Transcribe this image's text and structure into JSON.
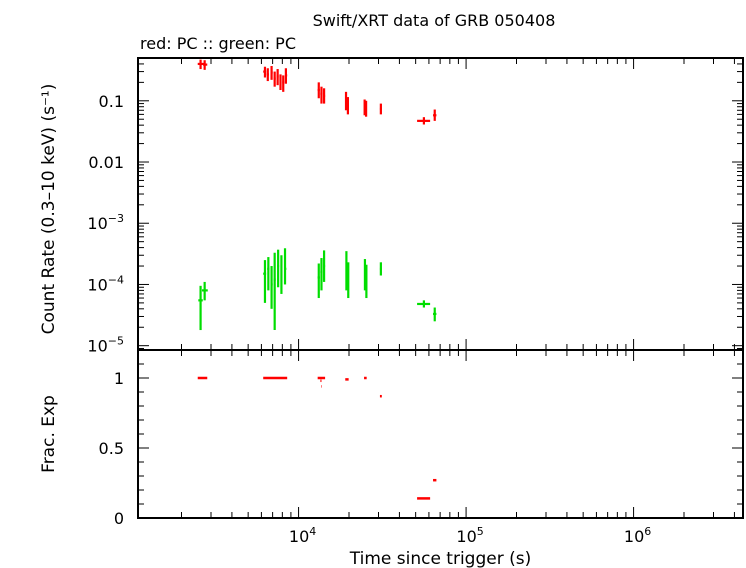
{
  "title": "Swift/XRT data of GRB 050408",
  "subtitle": "red: PC  :: green: PC",
  "colors": {
    "pc_red": "#ff0000",
    "pc_green": "#00dd00",
    "axis": "#000000"
  },
  "chart_data": [
    {
      "type": "scatter",
      "ylabel": "Count Rate (0.3–10 keV) (s⁻¹)",
      "xscale": "log",
      "yscale": "log",
      "xlim": [
        1100,
        4500000
      ],
      "ylim": [
        8.5e-06,
        0.5
      ],
      "yticks": [
        {
          "value": 0.1,
          "label": "0.1"
        },
        {
          "value": 0.01,
          "label": "0.01"
        },
        {
          "value": 0.001,
          "label": "10",
          "exp": "−3"
        },
        {
          "value": 0.0001,
          "label": "10",
          "exp": "−4"
        },
        {
          "value": 1e-05,
          "label": "10",
          "exp": "−5"
        }
      ],
      "series": [
        {
          "color": "#ff0000",
          "points": [
            {
              "x": 2600,
              "xerr": [
                2500,
                2720
              ],
              "y": 0.4,
              "ylo": 0.33,
              "yhi": 0.47
            },
            {
              "x": 2750,
              "xerr": [
                2690,
                2850
              ],
              "y": 0.39,
              "ylo": 0.32,
              "yhi": 0.46
            },
            {
              "x": 6300,
              "xerr": [
                6150,
                6400
              ],
              "y": 0.3,
              "ylo": 0.24,
              "yhi": 0.36
            },
            {
              "x": 6550,
              "xerr": [
                6450,
                6650
              ],
              "y": 0.27,
              "ylo": 0.21,
              "yhi": 0.34
            },
            {
              "x": 6900,
              "xerr": [
                6800,
                7000
              ],
              "y": 0.29,
              "ylo": 0.22,
              "yhi": 0.37
            },
            {
              "x": 7200,
              "xerr": [
                7100,
                7300
              ],
              "y": 0.23,
              "ylo": 0.17,
              "yhi": 0.3
            },
            {
              "x": 7500,
              "xerr": [
                7400,
                7600
              ],
              "y": 0.25,
              "ylo": 0.18,
              "yhi": 0.33
            },
            {
              "x": 7800,
              "xerr": [
                7700,
                7900
              ],
              "y": 0.21,
              "ylo": 0.15,
              "yhi": 0.27
            },
            {
              "x": 8100,
              "xerr": [
                8000,
                8200
              ],
              "y": 0.2,
              "ylo": 0.14,
              "yhi": 0.26
            },
            {
              "x": 8400,
              "xerr": [
                8300,
                8550
              ],
              "y": 0.26,
              "ylo": 0.19,
              "yhi": 0.34
            },
            {
              "x": 13200,
              "xerr": [
                13000,
                13400
              ],
              "y": 0.15,
              "ylo": 0.11,
              "yhi": 0.2
            },
            {
              "x": 13700,
              "xerr": [
                13500,
                13900
              ],
              "y": 0.13,
              "ylo": 0.09,
              "yhi": 0.17
            },
            {
              "x": 14200,
              "xerr": [
                14000,
                14400
              ],
              "y": 0.12,
              "ylo": 0.09,
              "yhi": 0.16
            },
            {
              "x": 19200,
              "xerr": [
                19000,
                19400
              ],
              "y": 0.1,
              "ylo": 0.07,
              "yhi": 0.14
            },
            {
              "x": 19700,
              "xerr": [
                19500,
                19900
              ],
              "y": 0.085,
              "ylo": 0.06,
              "yhi": 0.115
            },
            {
              "x": 24800,
              "xerr": [
                24600,
                25000
              ],
              "y": 0.08,
              "ylo": 0.058,
              "yhi": 0.105
            },
            {
              "x": 25300,
              "xerr": [
                25100,
                25500
              ],
              "y": 0.075,
              "ylo": 0.055,
              "yhi": 0.1
            },
            {
              "x": 31000,
              "xerr": [
                30600,
                31400
              ],
              "y": 0.074,
              "ylo": 0.06,
              "yhi": 0.09
            },
            {
              "x": 56000,
              "xerr": [
                51000,
                61000
              ],
              "y": 0.047,
              "ylo": 0.041,
              "yhi": 0.054
            },
            {
              "x": 65000,
              "xerr": [
                63500,
                66500
              ],
              "y": 0.058,
              "ylo": 0.047,
              "yhi": 0.072
            }
          ]
        },
        {
          "color": "#00dd00",
          "points": [
            {
              "x": 2600,
              "xerr": [
                2520,
                2680
              ],
              "y": 5.5e-05,
              "ylo": 1.8e-05,
              "yhi": 9.5e-05
            },
            {
              "x": 2750,
              "xerr": [
                2650,
                2870
              ],
              "y": 8e-05,
              "ylo": 5.5e-05,
              "yhi": 0.00011
            },
            {
              "x": 6300,
              "xerr": [
                6150,
                6400
              ],
              "y": 0.00015,
              "ylo": 5e-05,
              "yhi": 0.00025
            },
            {
              "x": 6600,
              "xerr": [
                6500,
                6700
              ],
              "y": 0.00018,
              "ylo": 8e-05,
              "yhi": 0.00028
            },
            {
              "x": 6900,
              "xerr": [
                6800,
                7000
              ],
              "y": 0.0001,
              "ylo": 4e-05,
              "yhi": 0.0002
            },
            {
              "x": 7200,
              "xerr": [
                7100,
                7300
              ],
              "y": 0.00012,
              "ylo": 1.8e-05,
              "yhi": 0.00033
            },
            {
              "x": 7550,
              "xerr": [
                7450,
                7650
              ],
              "y": 0.0002,
              "ylo": 9e-05,
              "yhi": 0.00037
            },
            {
              "x": 7900,
              "xerr": [
                7800,
                8000
              ],
              "y": 0.00016,
              "ylo": 7e-05,
              "yhi": 0.0003
            },
            {
              "x": 8300,
              "xerr": [
                8200,
                8450
              ],
              "y": 0.00018,
              "ylo": 0.0001,
              "yhi": 0.00039
            },
            {
              "x": 13200,
              "xerr": [
                13000,
                13400
              ],
              "y": 0.00013,
              "ylo": 6e-05,
              "yhi": 0.00022
            },
            {
              "x": 13700,
              "xerr": [
                13500,
                13900
              ],
              "y": 0.00016,
              "ylo": 8e-05,
              "yhi": 0.00027
            },
            {
              "x": 14200,
              "xerr": [
                14000,
                14400
              ],
              "y": 0.0002,
              "ylo": 0.00011,
              "yhi": 0.00036
            },
            {
              "x": 19300,
              "xerr": [
                19100,
                19500
              ],
              "y": 0.00018,
              "ylo": 8e-05,
              "yhi": 0.00035
            },
            {
              "x": 19800,
              "xerr": [
                19600,
                20000
              ],
              "y": 0.00013,
              "ylo": 6e-05,
              "yhi": 0.00023
            },
            {
              "x": 24900,
              "xerr": [
                24700,
                25100
              ],
              "y": 0.00015,
              "ylo": 8e-05,
              "yhi": 0.00026
            },
            {
              "x": 25400,
              "xerr": [
                25200,
                25600
              ],
              "y": 0.00012,
              "ylo": 6e-05,
              "yhi": 0.00021
            },
            {
              "x": 31000,
              "xerr": [
                30600,
                31400
              ],
              "y": 0.00018,
              "ylo": 0.00014,
              "yhi": 0.00023
            },
            {
              "x": 56000,
              "xerr": [
                51000,
                61000
              ],
              "y": 4.8e-05,
              "ylo": 4.2e-05,
              "yhi": 5.5e-05
            },
            {
              "x": 65000,
              "xerr": [
                63500,
                66500
              ],
              "y": 3.3e-05,
              "ylo": 2.5e-05,
              "yhi": 4.2e-05
            }
          ]
        }
      ]
    },
    {
      "type": "scatter",
      "xlabel": "Time since trigger (s)",
      "ylabel": "Frac. Exp",
      "xscale": "log",
      "xlim": [
        1100,
        4500000
      ],
      "ylim": [
        0,
        1.2
      ],
      "yticks": [
        {
          "value": 1,
          "label": "1"
        },
        {
          "value": 0.5,
          "label": "0.5"
        },
        {
          "value": 0,
          "label": "0"
        }
      ],
      "xticks": [
        {
          "value": 10000,
          "label": "10",
          "exp": "4"
        },
        {
          "value": 100000,
          "label": "10",
          "exp": "5"
        },
        {
          "value": 1000000,
          "label": "10",
          "exp": "6"
        }
      ],
      "series": [
        {
          "color": "#ff0000",
          "points": [
            {
              "x1": 2500,
              "x2": 2850,
              "y": 1.0
            },
            {
              "x1": 6150,
              "x2": 8550,
              "y": 1.0
            },
            {
              "x1": 13000,
              "x2": 14400,
              "y": 1.0
            },
            {
              "x1": 13500,
              "x2": 13700,
              "y": 0.98
            },
            {
              "x1": 13700,
              "x2": 13800,
              "y": 0.94
            },
            {
              "x1": 19000,
              "x2": 19900,
              "y": 0.99
            },
            {
              "x1": 24600,
              "x2": 25500,
              "y": 1.0
            },
            {
              "x1": 30600,
              "x2": 31400,
              "y": 0.87
            },
            {
              "x1": 51000,
              "x2": 61000,
              "y": 0.14
            },
            {
              "x1": 63500,
              "x2": 66500,
              "y": 0.27
            }
          ]
        }
      ]
    }
  ]
}
